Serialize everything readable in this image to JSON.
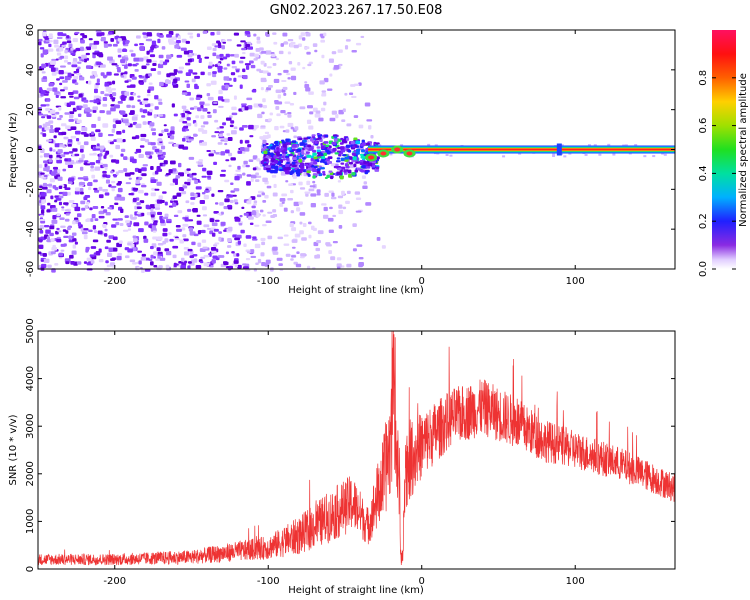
{
  "title": "GN02.2023.267.17.50.E08",
  "chart_data": [
    {
      "type": "heatmap",
      "xlabel": "Height of straight line (km)",
      "ylabel": "Frequency (Hz)",
      "xlim": [
        -250,
        165
      ],
      "ylim": [
        -60,
        60
      ],
      "xticks": [
        -200,
        -100,
        0,
        100
      ],
      "yticks": [
        -60,
        -40,
        -20,
        0,
        20,
        40,
        60
      ],
      "colorbar": {
        "label": "Normalized spectral amplitude",
        "range": [
          0,
          1
        ],
        "ticks": [
          0.0,
          0.2,
          0.4,
          0.6,
          0.8
        ]
      },
      "description_data": {
        "noise_region_x": [
          -250,
          -30
        ],
        "signal_line_frequency": 0,
        "signal_line_x": [
          0,
          165
        ],
        "cluster_x": [
          -105,
          -30
        ],
        "cluster_freq_halfwidth": 12
      }
    },
    {
      "type": "line",
      "xlabel": "Height of straight line (km)",
      "ylabel": "SNR (10 * v/v)",
      "xlim": [
        -250,
        165
      ],
      "ylim": [
        0,
        5000
      ],
      "xticks": [
        -200,
        -100,
        0,
        100
      ],
      "yticks": [
        0,
        1000,
        2000,
        3000,
        4000,
        5000
      ],
      "line_color": "#ee3333",
      "envelope": {
        "x": [
          -250,
          -200,
          -150,
          -100,
          -80,
          -60,
          -45,
          -35,
          -25,
          -18,
          -14,
          -10,
          0,
          20,
          40,
          60,
          80,
          100,
          130,
          165
        ],
        "mid": [
          200,
          200,
          250,
          450,
          700,
          1100,
          1400,
          900,
          1900,
          3000,
          1500,
          2200,
          2600,
          3200,
          3400,
          3100,
          2700,
          2500,
          2200,
          1700
        ],
        "amp": [
          120,
          120,
          150,
          250,
          400,
          550,
          600,
          400,
          900,
          1300,
          800,
          900,
          700,
          600,
          600,
          550,
          450,
          400,
          350,
          300
        ]
      }
    }
  ]
}
